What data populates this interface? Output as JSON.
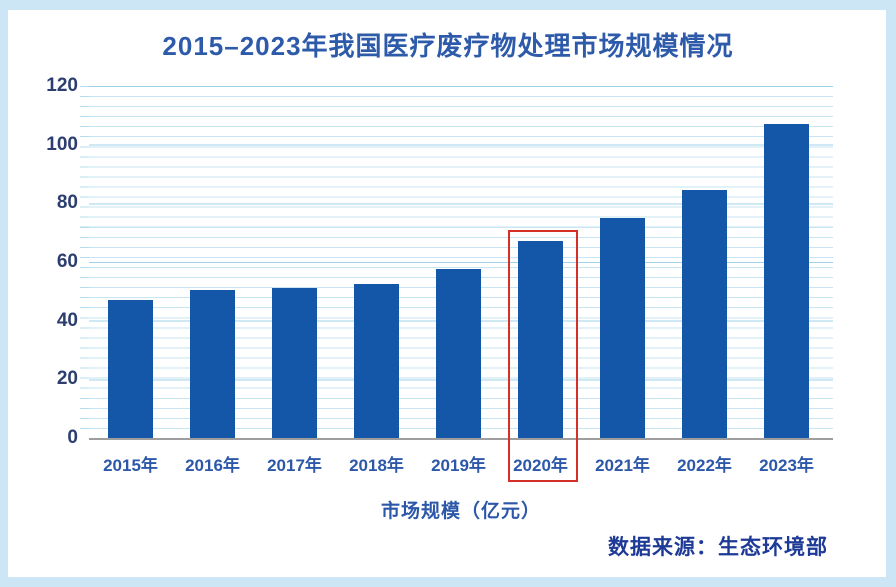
{
  "title": {
    "text": "2015–2023年我国医疗废疗物处理市场规模情况"
  },
  "chart_data": {
    "type": "bar",
    "title": "2015–2023年我国医疗废疗物处理市场规模情况",
    "categories": [
      "2015年",
      "2016年",
      "2017年",
      "2018年",
      "2019年",
      "2020年",
      "2021年",
      "2022年",
      "2023年"
    ],
    "values": [
      47,
      50.5,
      51,
      52.5,
      57.5,
      67,
      75,
      84.5,
      107
    ],
    "xlabel": "市场规模（亿元）",
    "ylabel": "",
    "ylim": [
      0,
      120
    ],
    "yticks": [
      0,
      20,
      40,
      60,
      80,
      100,
      120
    ],
    "grid": "horizontal, minor light-blue lines with darker major lines",
    "legend": "none",
    "highlight": {
      "category": "2020年",
      "style": "red outline box around bar and label"
    }
  },
  "caption": {
    "text": "市场规模（亿元）"
  },
  "footer": {
    "source_text": "数据来源：生态环境部"
  },
  "colors": {
    "canvas-bg": "#cde6f6",
    "card-bg": "#ffffff",
    "title-color": "#2d5aa9",
    "bar-color": "#1456a7",
    "ytick-color": "#2c3e6f",
    "xtick-color": "#2d58a9",
    "caption-color": "#2d58a9",
    "source-color": "#1e3a97",
    "highlight-color": "#d43027",
    "gridline-minor": "#c7e5f3",
    "gridline-major": "#9ed2e9",
    "baseline": "#9e9e9e"
  }
}
